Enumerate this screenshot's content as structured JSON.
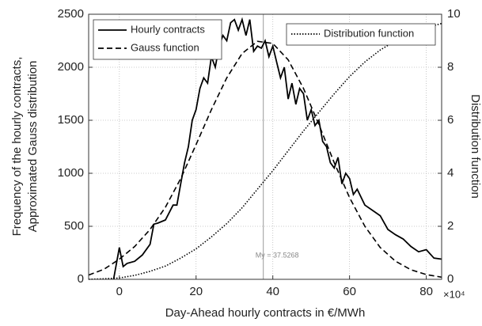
{
  "chart_data": {
    "type": "line",
    "xlabel": "Day-Ahead hourly contracts in €/MWh",
    "ylabel": [
      "Frequency of the hourly contracts,",
      "Approximated Gauss distribution"
    ],
    "y2label": "Distribution function",
    "y2_multiplier": "×10⁴",
    "xlim": [
      -8,
      84
    ],
    "xticks": [
      0,
      20,
      40,
      60,
      80
    ],
    "ylim": [
      0,
      2500
    ],
    "yticks": [
      0,
      500,
      1000,
      1500,
      2000,
      2500
    ],
    "y2lim": [
      0,
      10
    ],
    "y2ticks": [
      0,
      2,
      4,
      6,
      8,
      10
    ],
    "grid": true,
    "mean_line": {
      "x": 37.5268,
      "label": "My = 37.5268"
    },
    "series": [
      {
        "name": "Hourly contracts",
        "color": "#000000",
        "style": "solid",
        "axis": "y",
        "x": [
          -1.5,
          0,
          1,
          2,
          4,
          6,
          8,
          9,
          10,
          12,
          14,
          15,
          16,
          17,
          18,
          19,
          20,
          21,
          22,
          23,
          24,
          25,
          26,
          27,
          28,
          29,
          30,
          31,
          32,
          33,
          34,
          35,
          36,
          37,
          38,
          39,
          40,
          41,
          42,
          43,
          44,
          45,
          46,
          47,
          48,
          49,
          50,
          51,
          52,
          53,
          54,
          55,
          56,
          57,
          58,
          59,
          60,
          61,
          62,
          64,
          66,
          68,
          70,
          72,
          74,
          76,
          78,
          80,
          82,
          84
        ],
        "values": [
          0,
          300,
          120,
          150,
          170,
          230,
          330,
          520,
          530,
          560,
          700,
          700,
          900,
          1100,
          1250,
          1500,
          1600,
          1800,
          1900,
          1850,
          2100,
          2000,
          2200,
          2300,
          2250,
          2420,
          2450,
          2350,
          2450,
          2300,
          2450,
          2150,
          2200,
          2180,
          2250,
          2100,
          2200,
          2050,
          1900,
          2000,
          1700,
          1850,
          1650,
          1800,
          1750,
          1500,
          1600,
          1450,
          1500,
          1300,
          1250,
          1100,
          1050,
          1150,
          900,
          1000,
          950,
          800,
          850,
          700,
          650,
          600,
          470,
          420,
          380,
          310,
          260,
          280,
          200,
          190
        ]
      },
      {
        "name": "Gauss function",
        "color": "#000000",
        "style": "dashed",
        "axis": "y",
        "x": [
          -8,
          -4,
          0,
          4,
          8,
          12,
          16,
          20,
          24,
          28,
          32,
          36,
          40,
          44,
          48,
          52,
          56,
          60,
          64,
          68,
          72,
          76,
          80,
          84
        ],
        "values": [
          40,
          95,
          190,
          310,
          470,
          680,
          950,
          1270,
          1600,
          1900,
          2130,
          2245,
          2225,
          2070,
          1800,
          1460,
          1100,
          770,
          500,
          300,
          170,
          90,
          45,
          20
        ]
      },
      {
        "name": "Distribution function",
        "color": "#000000",
        "style": "dotted",
        "axis": "y2",
        "x": [
          -8,
          -4,
          0,
          4,
          8,
          12,
          16,
          20,
          24,
          28,
          32,
          36,
          40,
          44,
          48,
          52,
          56,
          60,
          64,
          68,
          72,
          76,
          80,
          84
        ],
        "values": [
          0,
          0.02,
          0.05,
          0.15,
          0.3,
          0.5,
          0.8,
          1.15,
          1.6,
          2.1,
          2.7,
          3.4,
          4.1,
          4.85,
          5.6,
          6.3,
          7.0,
          7.65,
          8.2,
          8.65,
          9.0,
          9.3,
          9.5,
          9.65
        ]
      }
    ]
  }
}
